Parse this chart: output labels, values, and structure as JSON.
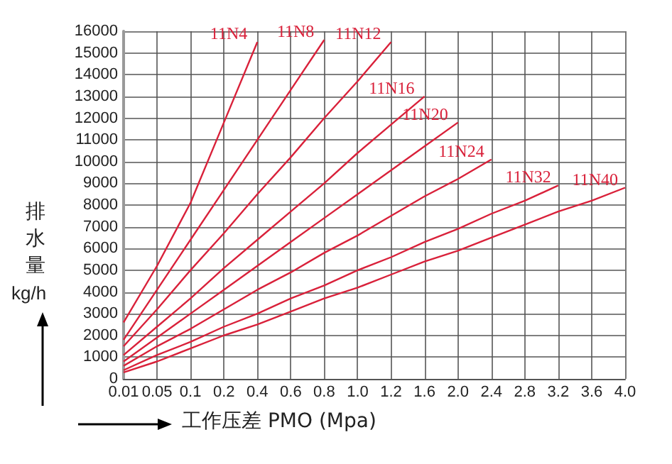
{
  "chart_data": {
    "type": "line",
    "xlabel": "工作压差 PMO (Mpa)",
    "ylabel": "排水量 kg/h",
    "categories": [
      "0.01",
      "0.05",
      "0.1",
      "0.2",
      "0.4",
      "0.6",
      "0.8",
      "1.0",
      "1.2",
      "1.6",
      "2.0",
      "2.4",
      "2.8",
      "3.2",
      "3.6",
      "4.0"
    ],
    "series": [
      {
        "name": "11N4",
        "color": "#d9213a",
        "values": [
          2600,
          5200,
          8100,
          11800,
          15500,
          null,
          null,
          null,
          null,
          null,
          null,
          null,
          null,
          null,
          null,
          null
        ]
      },
      {
        "name": "11N8",
        "color": "#d9213a",
        "values": [
          1800,
          4100,
          6400,
          8700,
          11000,
          13300,
          15600,
          null,
          null,
          null,
          null,
          null,
          null,
          null,
          null,
          null
        ]
      },
      {
        "name": "11N12",
        "color": "#d9213a",
        "values": [
          1500,
          3200,
          5000,
          6700,
          8500,
          10200,
          12000,
          13700,
          15500,
          null,
          null,
          null,
          null,
          null,
          null,
          null
        ]
      },
      {
        "name": "11N16",
        "color": "#d9213a",
        "values": [
          1100,
          2400,
          3700,
          5100,
          6400,
          7700,
          9000,
          10400,
          11700,
          13000,
          null,
          null,
          null,
          null,
          null,
          null
        ]
      },
      {
        "name": "11N20",
        "color": "#d9213a",
        "values": [
          800,
          1900,
          3000,
          4100,
          5200,
          6300,
          7400,
          8500,
          9600,
          10700,
          11800,
          null,
          null,
          null,
          null,
          null
        ]
      },
      {
        "name": "11N24",
        "color": "#d9213a",
        "values": [
          600,
          1500,
          2300,
          3200,
          4100,
          4900,
          5800,
          6600,
          7500,
          8400,
          9200,
          10100,
          null,
          null,
          null,
          null
        ]
      },
      {
        "name": "11N32",
        "color": "#d9213a",
        "values": [
          400,
          1100,
          1700,
          2400,
          3000,
          3700,
          4300,
          5000,
          5600,
          6300,
          6900,
          7600,
          8200,
          8900,
          null,
          null
        ]
      },
      {
        "name": "11N40",
        "color": "#d9213a",
        "values": [
          300,
          800,
          1400,
          2000,
          2500,
          3100,
          3700,
          4200,
          4800,
          5400,
          5900,
          6500,
          7100,
          7700,
          8200,
          8800
        ]
      }
    ],
    "ylim": [
      0,
      16000
    ],
    "yticks": [
      0,
      1000,
      2000,
      3000,
      4000,
      5000,
      6000,
      7000,
      8000,
      9000,
      10000,
      11000,
      12000,
      13000,
      14000,
      15000,
      16000
    ],
    "grid": true,
    "legend": false,
    "marker": "none",
    "line_style": "solid"
  }
}
